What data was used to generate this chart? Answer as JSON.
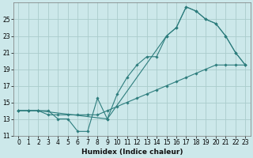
{
  "xlabel": "Humidex (Indice chaleur)",
  "bg_color": "#cce8ea",
  "grid_color": "#aacccc",
  "line_color": "#2d7d7d",
  "xlim": [
    -0.5,
    23.5
  ],
  "ylim": [
    11,
    27
  ],
  "yticks": [
    11,
    13,
    15,
    17,
    19,
    21,
    23,
    25
  ],
  "xticks": [
    0,
    1,
    2,
    3,
    4,
    5,
    6,
    7,
    8,
    9,
    10,
    11,
    12,
    13,
    14,
    15,
    16,
    17,
    18,
    19,
    20,
    21,
    22,
    23
  ],
  "series1_x": [
    0,
    1,
    2,
    3,
    4,
    5,
    6,
    7,
    8,
    9,
    10,
    11,
    12,
    13,
    14,
    15,
    16,
    17,
    18,
    19,
    20,
    21,
    22,
    23
  ],
  "series1_y": [
    14.0,
    14.0,
    14.0,
    14.0,
    13.0,
    13.0,
    11.5,
    11.5,
    15.5,
    13.0,
    16.0,
    18.0,
    19.5,
    20.5,
    20.5,
    23.0,
    24.0,
    26.5,
    26.0,
    25.0,
    24.5,
    23.0,
    21.0,
    19.5
  ],
  "series2_x": [
    0,
    1,
    2,
    3,
    4,
    5,
    6,
    7,
    8,
    9,
    10,
    11,
    12,
    13,
    14,
    15,
    16,
    17,
    18,
    19,
    20,
    21,
    22,
    23
  ],
  "series2_y": [
    14.0,
    14.0,
    14.0,
    13.5,
    13.5,
    13.5,
    13.5,
    13.5,
    13.5,
    14.0,
    14.5,
    15.0,
    15.5,
    16.0,
    16.5,
    17.0,
    17.5,
    18.0,
    18.5,
    19.0,
    19.5,
    19.5,
    19.5,
    19.5
  ],
  "series3_x": [
    0,
    1,
    2,
    9,
    15,
    16,
    17,
    18,
    19,
    20,
    21,
    22,
    23
  ],
  "series3_y": [
    14.0,
    14.0,
    14.0,
    13.0,
    23.0,
    24.0,
    26.5,
    26.0,
    25.0,
    24.5,
    23.0,
    21.0,
    19.5
  ],
  "xlabel_fontsize": 6.5,
  "tick_fontsize": 5.5
}
